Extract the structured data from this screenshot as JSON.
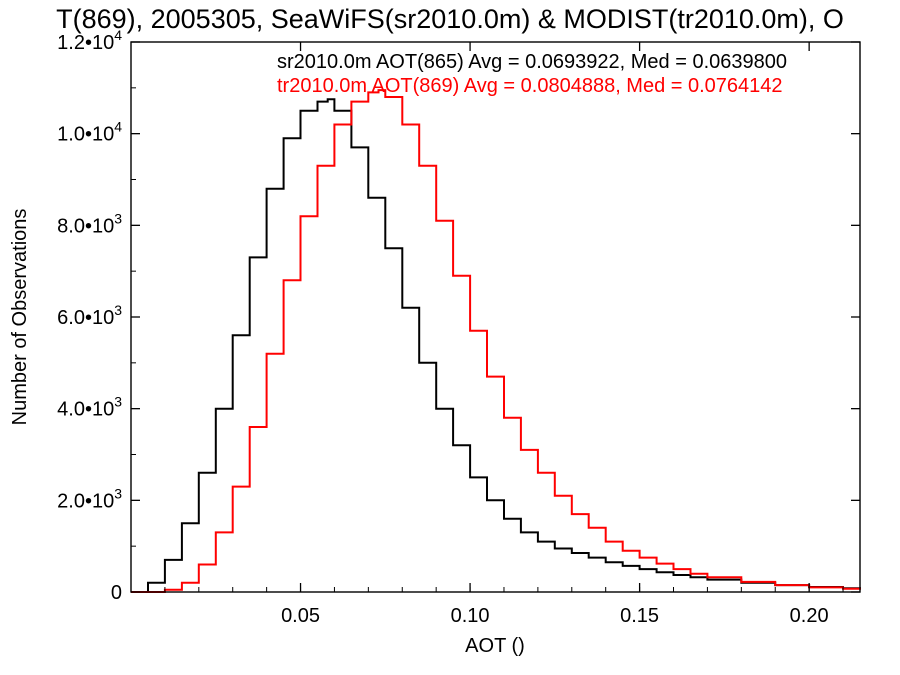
{
  "chart_data": {
    "type": "line",
    "title": "T(869), 2005305, SeaWiFS(sr2010.0m) & MODIST(tr2010.0m), O",
    "xlabel": "AOT ()",
    "ylabel": "Number of Observations",
    "xlim": [
      0.0,
      0.215
    ],
    "ylim": [
      0,
      12000
    ],
    "grid": false,
    "step": true,
    "x_ticks": [
      {
        "value": 0.05,
        "label": "0.05"
      },
      {
        "value": 0.1,
        "label": "0.10"
      },
      {
        "value": 0.15,
        "label": "0.15"
      },
      {
        "value": 0.2,
        "label": "0.20"
      }
    ],
    "y_ticks": [
      {
        "value": 0,
        "base": "0",
        "exp": ""
      },
      {
        "value": 2000,
        "base": "2.0•10",
        "exp": "3"
      },
      {
        "value": 4000,
        "base": "4.0•10",
        "exp": "3"
      },
      {
        "value": 6000,
        "base": "6.0•10",
        "exp": "3"
      },
      {
        "value": 8000,
        "base": "8.0•10",
        "exp": "3"
      },
      {
        "value": 10000,
        "base": "1.0•10",
        "exp": "4"
      },
      {
        "value": 12000,
        "base": "1.2•10",
        "exp": "4"
      }
    ],
    "annotations": [
      {
        "text": "sr2010.0m AOT(865) Avg = 0.0693922, Med = 0.0639800",
        "color": "#000000"
      },
      {
        "text": "tr2010.0m AOT(869) Avg = 0.0804888, Med = 0.0764142",
        "color": "#ff0000"
      }
    ],
    "series": [
      {
        "color": "#000000",
        "x": [
          0.0,
          0.005,
          0.01,
          0.015,
          0.02,
          0.025,
          0.03,
          0.035,
          0.04,
          0.045,
          0.05,
          0.055,
          0.058,
          0.06,
          0.065,
          0.07,
          0.075,
          0.08,
          0.085,
          0.09,
          0.095,
          0.1,
          0.105,
          0.11,
          0.115,
          0.12,
          0.125,
          0.13,
          0.135,
          0.14,
          0.145,
          0.15,
          0.155,
          0.16,
          0.165,
          0.17,
          0.18,
          0.19,
          0.2,
          0.21,
          0.215
        ],
        "y": [
          0,
          200,
          700,
          1500,
          2600,
          4000,
          5600,
          7300,
          8800,
          9900,
          10500,
          10700,
          10750,
          10500,
          9700,
          8600,
          7500,
          6200,
          5000,
          4000,
          3200,
          2500,
          2000,
          1600,
          1300,
          1100,
          950,
          850,
          750,
          650,
          570,
          500,
          430,
          370,
          320,
          270,
          200,
          150,
          110,
          80,
          60
        ]
      },
      {
        "color": "#ff0000",
        "x": [
          0.0,
          0.01,
          0.015,
          0.02,
          0.025,
          0.03,
          0.035,
          0.04,
          0.045,
          0.05,
          0.055,
          0.06,
          0.065,
          0.07,
          0.073,
          0.075,
          0.08,
          0.085,
          0.09,
          0.095,
          0.1,
          0.105,
          0.11,
          0.115,
          0.12,
          0.125,
          0.13,
          0.135,
          0.14,
          0.145,
          0.15,
          0.155,
          0.16,
          0.165,
          0.17,
          0.18,
          0.19,
          0.2,
          0.21,
          0.215
        ],
        "y": [
          0,
          50,
          200,
          600,
          1300,
          2300,
          3600,
          5200,
          6800,
          8200,
          9300,
          10200,
          10700,
          10900,
          10950,
          10800,
          10200,
          9300,
          8100,
          6900,
          5700,
          4700,
          3800,
          3100,
          2600,
          2100,
          1700,
          1400,
          1100,
          900,
          750,
          620,
          500,
          400,
          320,
          220,
          150,
          100,
          70,
          50
        ]
      }
    ]
  }
}
